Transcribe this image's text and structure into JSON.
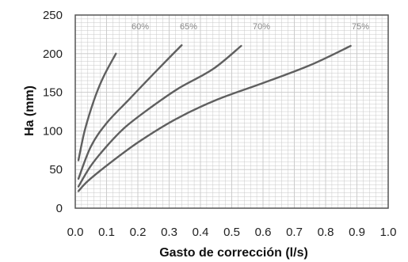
{
  "chart_data": {
    "type": "line",
    "title": "",
    "xlabel": "Gasto de corrección (l/s)",
    "ylabel": "Ha  (mm)",
    "xlim": [
      0.0,
      1.0
    ],
    "ylim": [
      0,
      250
    ],
    "grid": true,
    "x_ticks": [
      "0.0",
      "0.1",
      "0.2",
      "0.3",
      "0.4",
      "0.5",
      "0.6",
      "0.7",
      "0.8",
      "0.9",
      "1.0"
    ],
    "y_ticks": [
      "0",
      "50",
      "100",
      "150",
      "200",
      "250"
    ],
    "series": [
      {
        "name": "60%",
        "x": [
          0.01,
          0.03,
          0.06,
          0.09,
          0.13
        ],
        "y": [
          62,
          100,
          140,
          170,
          200
        ]
      },
      {
        "name": "65%",
        "x": [
          0.01,
          0.05,
          0.1,
          0.17,
          0.26,
          0.34
        ],
        "y": [
          38,
          80,
          110,
          140,
          178,
          211
        ]
      },
      {
        "name": "70%",
        "x": [
          0.01,
          0.05,
          0.1,
          0.16,
          0.24,
          0.33,
          0.44,
          0.53
        ],
        "y": [
          28,
          55,
          80,
          105,
          130,
          155,
          180,
          210
        ]
      },
      {
        "name": "75%",
        "x": [
          0.01,
          0.04,
          0.1,
          0.2,
          0.32,
          0.45,
          0.6,
          0.75,
          0.88
        ],
        "y": [
          22,
          35,
          55,
          85,
          115,
          140,
          162,
          185,
          210
        ]
      }
    ],
    "line_color": "#5f5f5f",
    "grid_color": "#c8c8c8"
  }
}
